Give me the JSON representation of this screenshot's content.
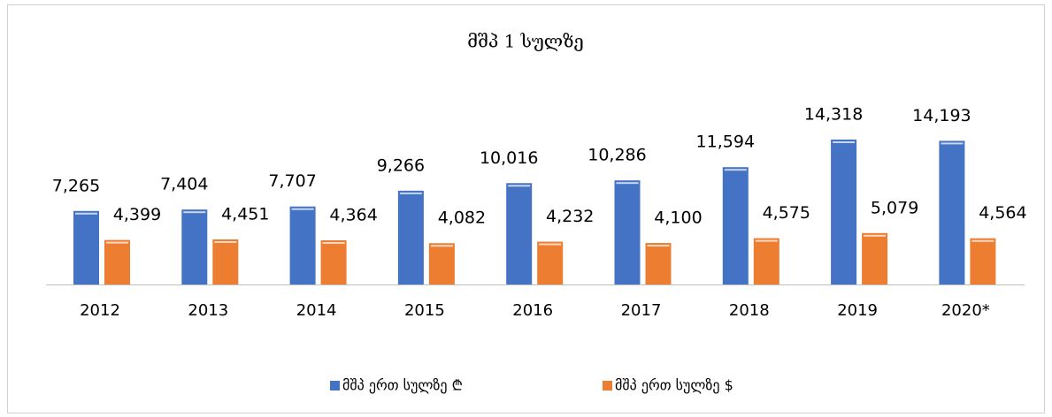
{
  "chart_data": {
    "type": "bar",
    "title": "მშპ 1 სულზე",
    "categories": [
      "2012",
      "2013",
      "2014",
      "2015",
      "2016",
      "2017",
      "2018",
      "2019",
      "2020*"
    ],
    "series": [
      {
        "name": "მშპ ერთ სულზე ₾",
        "color": "#4472c4",
        "values": [
          7265,
          7404,
          7707,
          9266,
          10016,
          10286,
          11594,
          14318,
          14193
        ],
        "value_labels": [
          "7,265",
          "7,404",
          "7,707",
          "9,266",
          "10,016",
          "10,286",
          "11,594",
          "14,318",
          "14,193"
        ]
      },
      {
        "name": "მშპ ერთ სულზე $",
        "color": "#ed7d31",
        "values": [
          4399,
          4451,
          4364,
          4082,
          4232,
          4100,
          4575,
          5079,
          4564
        ],
        "value_labels": [
          "4,399",
          "4,451",
          "4,364",
          "4,082",
          "4,232",
          "4,100",
          "4,575",
          "5,079",
          "4,564"
        ]
      }
    ],
    "legend": "bottom"
  }
}
